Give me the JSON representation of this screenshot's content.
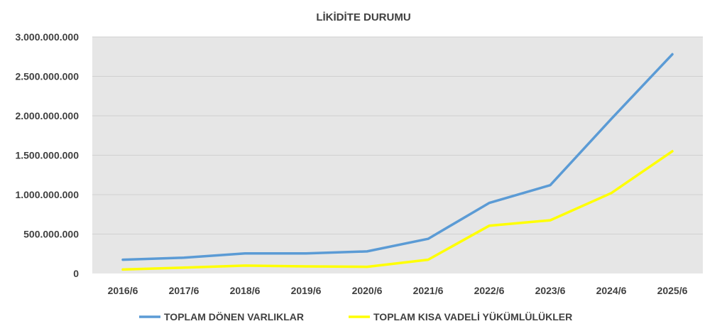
{
  "chart_data": {
    "type": "line",
    "title": "LİKİDİTE DURUMU",
    "categories": [
      "2016/6",
      "2017/6",
      "2018/6",
      "2019/6",
      "2020/6",
      "2021/6",
      "2022/6",
      "2023/6",
      "2024/6",
      "2025/6"
    ],
    "y_ticks": [
      "0",
      "500.000.000",
      "1.000.000.000",
      "1.500.000.000",
      "2.000.000.000",
      "2.500.000.000",
      "3.000.000.000"
    ],
    "ylim": [
      0,
      3000000000
    ],
    "grid": true,
    "legend_position": "bottom",
    "plot_background": "#e6e6e6",
    "series": [
      {
        "name": "TOPLAM DÖNEN VARLIKLAR",
        "color": "#5b9bd5",
        "values": [
          175000000,
          200000000,
          255000000,
          255000000,
          280000000,
          440000000,
          895000000,
          1120000000,
          1960000000,
          2780000000
        ]
      },
      {
        "name": "TOPLAM KISA VADELİ YÜKÜMLÜLÜKLER",
        "color": "#ffff00",
        "values": [
          50000000,
          75000000,
          100000000,
          90000000,
          85000000,
          175000000,
          605000000,
          675000000,
          1020000000,
          1550000000
        ]
      }
    ]
  }
}
